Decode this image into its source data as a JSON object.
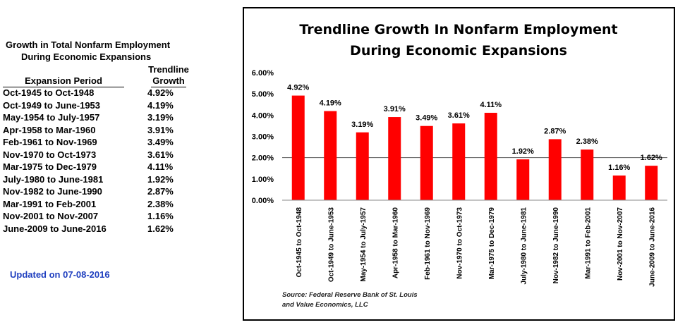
{
  "table": {
    "title_line1": "Growth in Total Nonfarm Employment",
    "title_line2": "During Economic Expansions",
    "growth_header_line1": "Trendline",
    "growth_header_line2": "Growth",
    "period_header": "Expansion Period",
    "rows": [
      {
        "period": "Oct-1945 to Oct-1948",
        "growth": "4.92%"
      },
      {
        "period": "Oct-1949 to June-1953",
        "growth": "4.19%"
      },
      {
        "period": "May-1954 to July-1957",
        "growth": "3.19%"
      },
      {
        "period": "Apr-1958 to Mar-1960",
        "growth": "3.91%"
      },
      {
        "period": "Feb-1961 to Nov-1969",
        "growth": "3.49%"
      },
      {
        "period": "Nov-1970 to Oct-1973",
        "growth": "3.61%"
      },
      {
        "period": "Mar-1975 to Dec-1979",
        "growth": "4.11%"
      },
      {
        "period": "July-1980 to June-1981",
        "growth": "1.92%"
      },
      {
        "period": "Nov-1982  to June-1990",
        "growth": "2.87%"
      },
      {
        "period": "Mar-1991 to Feb-2001",
        "growth": "2.38%"
      },
      {
        "period": "Nov-2001 to Nov-2007",
        "growth": "1.16%"
      },
      {
        "period": "June-2009 to June-2016",
        "growth": "1.62%"
      }
    ]
  },
  "updated_text": "Updated on 07-08-2016",
  "source_line1": "Source:  Federal Reserve Bank of St. Louis",
  "source_line2": "and Value Economics, LLC",
  "colors": {
    "bar": "#ff0000",
    "updated": "#1f3fbf"
  },
  "chart_data": {
    "type": "bar",
    "title_line1": "Trendline Growth In Nonfarm Employment",
    "title_line2": "During Economic Expansions",
    "categories": [
      "Oct-1945 to Oct-1948",
      "Oct-1949 to June-1953",
      "May-1954 to July-1957",
      "Apr-1958 to Mar-1960",
      "Feb-1961 to Nov-1969",
      "Nov-1970 to Oct-1973",
      "Mar-1975 to Dec-1979",
      "July-1980 to June-1981",
      "Nov-1982 to June-1990",
      "Mar-1991 to Feb-2001",
      "Nov-2001 to Nov-2007",
      "June-2009 to June-2016"
    ],
    "values": [
      4.92,
      4.19,
      3.19,
      3.91,
      3.49,
      3.61,
      4.11,
      1.92,
      2.87,
      2.38,
      1.16,
      1.62
    ],
    "data_labels": [
      "4.92%",
      "4.19%",
      "3.19%",
      "3.91%",
      "3.49%",
      "3.61%",
      "4.11%",
      "1.92%",
      "2.87%",
      "2.38%",
      "1.16%",
      "1.62%"
    ],
    "yticks": [
      "0.00%",
      "1.00%",
      "2.00%",
      "3.00%",
      "4.00%",
      "5.00%",
      "6.00%"
    ],
    "ylim": [
      0,
      6
    ],
    "reference_line": 2.0,
    "xlabel": "",
    "ylabel": ""
  }
}
